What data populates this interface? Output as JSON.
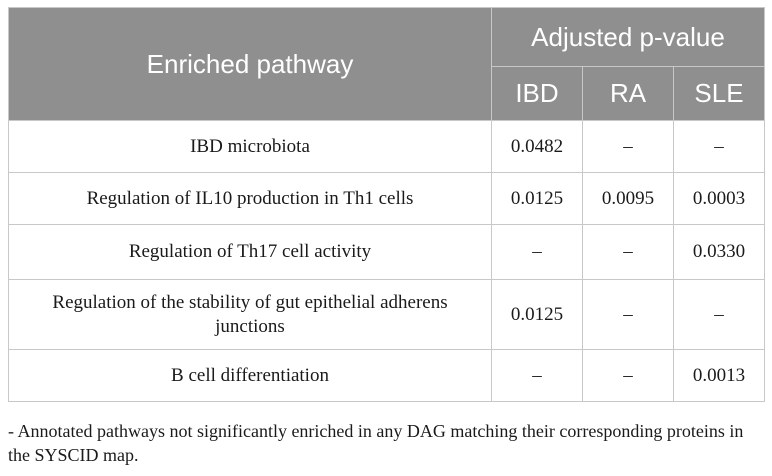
{
  "table": {
    "header": {
      "pathway": "Enriched pathway",
      "adjusted": "Adjusted p-value",
      "sub": [
        "IBD",
        "RA",
        "SLE"
      ]
    },
    "rows": [
      {
        "pathway": "IBD microbiota",
        "values": [
          "0.0482",
          "–",
          "–"
        ]
      },
      {
        "pathway": "Regulation of IL10 production in Th1 cells",
        "values": [
          "0.0125",
          "0.0095",
          "0.0003"
        ]
      },
      {
        "pathway": "Regulation of Th17 cell activity",
        "values": [
          "–",
          "–",
          "0.0330"
        ]
      },
      {
        "pathway": "Regulation of the stability of gut epithelial adherens junctions",
        "values": [
          "0.0125",
          "–",
          "–"
        ]
      },
      {
        "pathway": "B cell differentiation",
        "values": [
          "–",
          "–",
          "0.0013"
        ]
      }
    ]
  },
  "footnote": "- Annotated pathways not significantly enriched in any DAG matching their corresponding proteins in the SYSCID map.",
  "colors": {
    "header_bg": "#8f8f8f",
    "header_text": "#ffffff",
    "grid": "#c8c8c8"
  }
}
